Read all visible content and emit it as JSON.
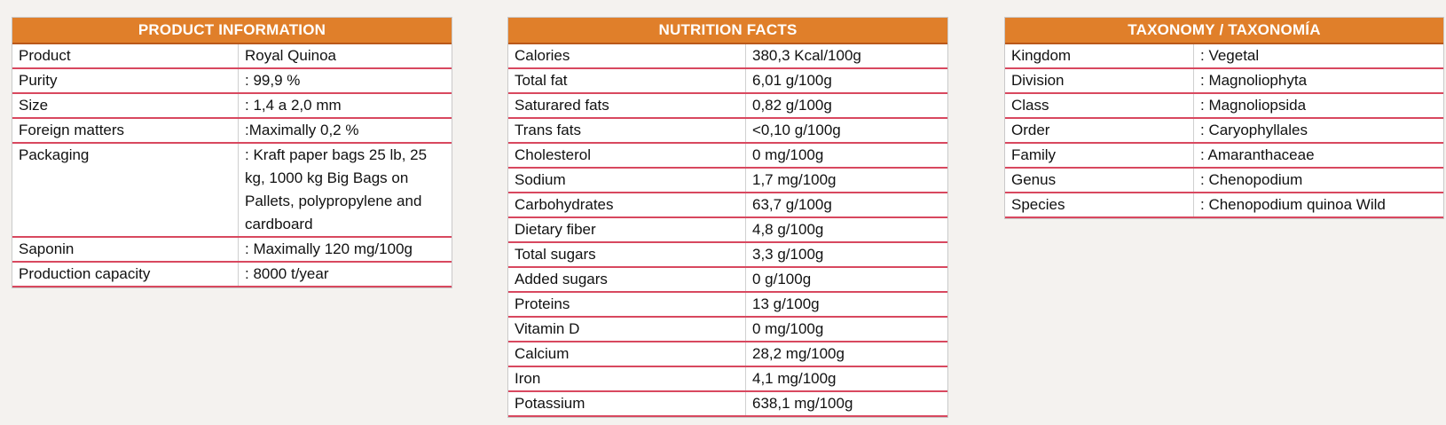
{
  "colors": {
    "header_bg": "#e07f2a",
    "row_divider": "#d8485f",
    "page_bg": "#f4f2ef"
  },
  "product_information": {
    "title": "PRODUCT INFORMATION",
    "rows": [
      {
        "label": "Product",
        "value": "Royal Quinoa"
      },
      {
        "label": "Purity",
        "value": ": 99,9 %"
      },
      {
        "label": "Size",
        "value": ": 1,4 a 2,0 mm"
      },
      {
        "label": "Foreign matters",
        "value": ":Maximally 0,2 %"
      },
      {
        "label": "Packaging",
        "value": ": Kraft paper bags 25 lb, 25 kg, 1000 kg Big Bags on Pallets, polypropylene and cardboard"
      },
      {
        "label": "Saponin",
        "value": ": Maximally 120 mg/100g"
      },
      {
        "label": "Production capacity",
        "value": ": 8000 t/year"
      }
    ]
  },
  "nutrition_facts": {
    "title": "NUTRITION FACTS",
    "rows": [
      {
        "label": "Calories",
        "value": "380,3 Kcal/100g"
      },
      {
        "label": "Total fat",
        "value": "6,01 g/100g"
      },
      {
        "label": "Saturared fats",
        "value": "0,82 g/100g"
      },
      {
        "label": "Trans fats",
        "value": "<0,10 g/100g"
      },
      {
        "label": "Cholesterol",
        "value": "0 mg/100g"
      },
      {
        "label": "Sodium",
        "value": "1,7 mg/100g"
      },
      {
        "label": "Carbohydrates",
        "value": "63,7 g/100g"
      },
      {
        "label": "Dietary fiber",
        "value": "4,8 g/100g"
      },
      {
        "label": "Total sugars",
        "value": "3,3 g/100g"
      },
      {
        "label": "Added sugars",
        "value": "0 g/100g"
      },
      {
        "label": "Proteins",
        "value": "13 g/100g"
      },
      {
        "label": "Vitamin D",
        "value": "0 mg/100g"
      },
      {
        "label": "Calcium",
        "value": "28,2 mg/100g"
      },
      {
        "label": "Iron",
        "value": "4,1 mg/100g"
      },
      {
        "label": "Potassium",
        "value": "638,1 mg/100g"
      }
    ]
  },
  "taxonomy": {
    "title": "TAXONOMY / TAXONOMÍA",
    "rows": [
      {
        "label": "Kingdom",
        "value": ": Vegetal"
      },
      {
        "label": "Division",
        "value": ": Magnoliophyta"
      },
      {
        "label": "Class",
        "value": ": Magnoliopsida"
      },
      {
        "label": "Order",
        "value": ": Caryophyllales"
      },
      {
        "label": "Family",
        "value": ": Amaranthaceae"
      },
      {
        "label": "Genus",
        "value": ": Chenopodium"
      },
      {
        "label": "Species",
        "value": ": Chenopodium quinoa Wild"
      }
    ]
  }
}
